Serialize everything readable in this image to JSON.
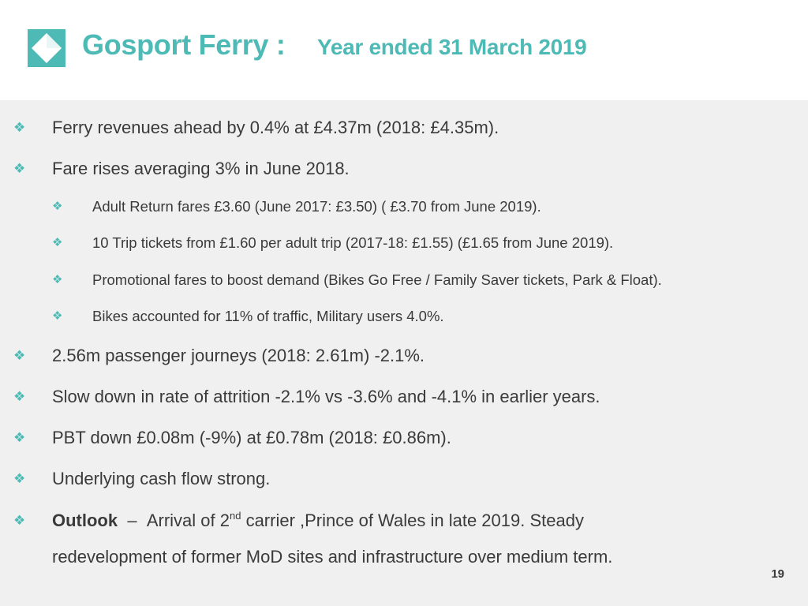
{
  "header": {
    "title": "Gosport Ferry :",
    "subtitle": "Year ended 31 March 2019",
    "logo_icon": "diamond-logo-icon",
    "accent_color": "#4dbab5"
  },
  "bullets": [
    {
      "level": 1,
      "text": "Ferry revenues ahead by 0.4% at £4.37m (2018: £4.35m)."
    },
    {
      "level": 1,
      "text": "Fare rises averaging 3% in June 2018."
    },
    {
      "level": 2,
      "text": "Adult Return fares £3.60 (June 2017: £3.50) ( £3.70 from June 2019)."
    },
    {
      "level": 2,
      "text": "10 Trip tickets from £1.60 per adult trip (2017-18:  £1.55) (£1.65 from June 2019)."
    },
    {
      "level": 2,
      "text": "Promotional fares to boost demand (Bikes Go Free / Family Saver tickets, Park & Float)."
    },
    {
      "level": 2,
      "text": "Bikes accounted for 11% of traffic, Military users 4.0%."
    },
    {
      "level": 1,
      "text": "2.56m passenger journeys (2018: 2.61m) -2.1%."
    },
    {
      "level": 1,
      "text": "Slow down in rate of attrition -2.1% vs -3.6% and -4.1% in earlier years."
    },
    {
      "level": 1,
      "text": "PBT down £0.08m (-9%) at £0.78m (2018: £0.86m)."
    },
    {
      "level": 1,
      "text": "Underlying cash flow strong."
    }
  ],
  "outlook": {
    "label": "Outlook",
    "dash": "–",
    "text_before_sup": "Arrival of 2",
    "sup": "nd",
    "text_after_sup": " carrier ,Prince of Wales in late 2019. Steady",
    "line2": "redevelopment of former MoD sites and infrastructure over medium term."
  },
  "bullet_marker_icon": "diamond-bullet-icon",
  "page_number": "19"
}
